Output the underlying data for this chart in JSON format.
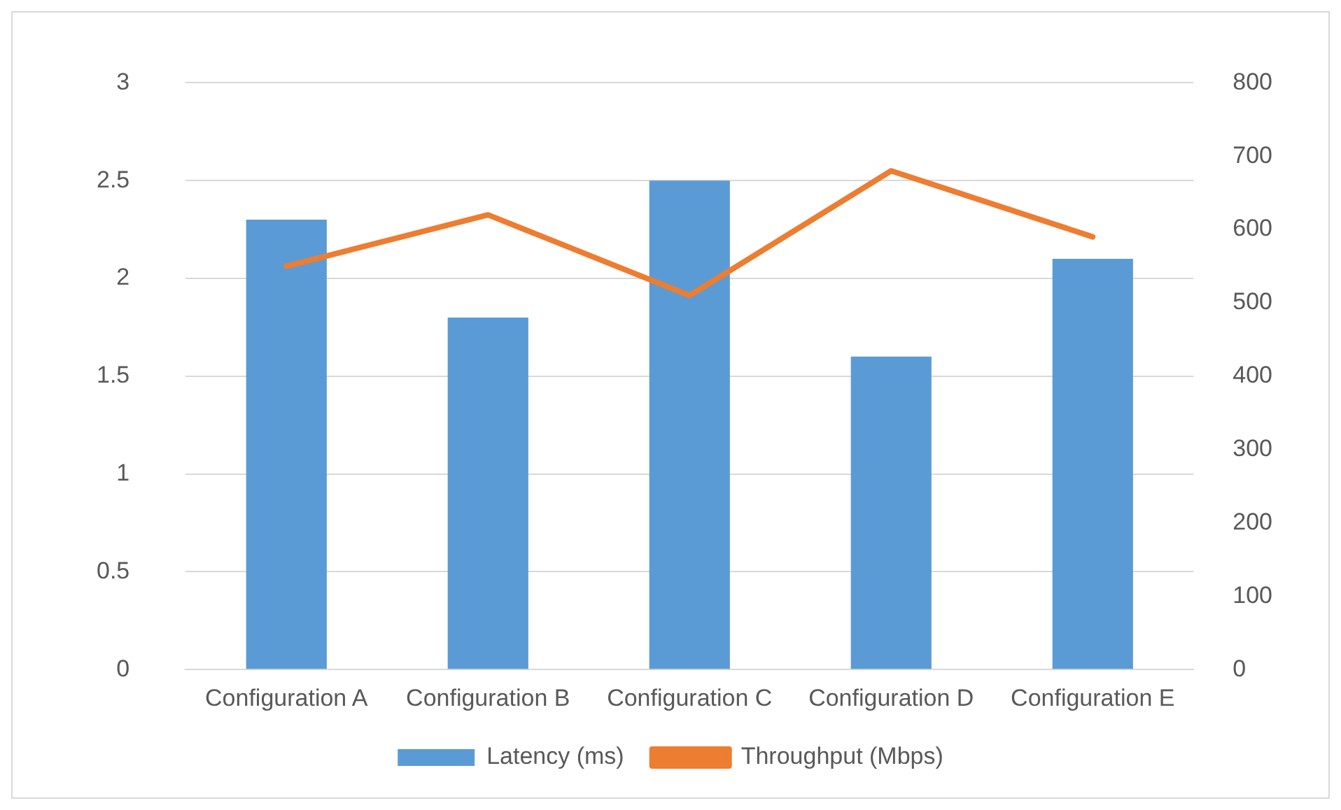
{
  "chart_data": {
    "type": "bar",
    "categories": [
      "Configuration A",
      "Configuration B",
      "Configuration C",
      "Configuration D",
      "Configuration E"
    ],
    "series": [
      {
        "name": "Latency (ms)",
        "color": "#5b9bd5",
        "values": [
          2.3,
          1.8,
          2.5,
          1.6,
          2.1
        ]
      },
      {
        "name": "Throughput (Mbps)",
        "type": "line",
        "axis": "y2",
        "color": "#ed7d31",
        "values": [
          550,
          620,
          510,
          680,
          590
        ]
      }
    ],
    "ylim": [
      0,
      3
    ],
    "yticks": [
      0,
      0.5,
      1,
      1.5,
      2,
      2.5,
      3
    ],
    "y2lim": [
      0,
      800
    ],
    "y2ticks": [
      0,
      100,
      200,
      300,
      400,
      500,
      600,
      700,
      800
    ],
    "grid": "y",
    "legend": "bottom",
    "marker": "none"
  }
}
